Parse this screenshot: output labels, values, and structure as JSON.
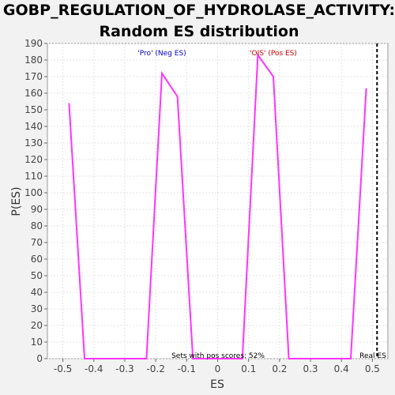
{
  "chart_data": {
    "type": "line",
    "title_line1": "GOBP_REGULATION_OF_HYDROLASE_ACTIVITY:",
    "title_line2": "Random ES distribution",
    "xlabel": "ES",
    "ylabel": "P(ES)",
    "xlim": [
      -0.55,
      0.55
    ],
    "ylim": [
      0,
      190
    ],
    "x_ticks": [
      -0.5,
      -0.4,
      -0.3,
      -0.2,
      -0.1,
      0,
      0.1,
      0.2,
      0.3,
      0.4,
      0.5
    ],
    "x_tick_labels": [
      "-0.5",
      "-0.4",
      "-0.3",
      "-0.2",
      "-0.1",
      "0",
      "0.1",
      "0.2",
      "0.3",
      "0.4",
      "0.5"
    ],
    "y_ticks": [
      0,
      10,
      20,
      30,
      40,
      50,
      60,
      70,
      80,
      90,
      100,
      110,
      120,
      130,
      140,
      150,
      160,
      170,
      180,
      190
    ],
    "grid": true,
    "series": [
      {
        "color": "#ff33ff",
        "x": [
          -0.48,
          -0.43,
          -0.33,
          -0.23,
          -0.18,
          -0.13,
          -0.08,
          -0.03,
          0.03,
          0.08,
          0.13,
          0.18,
          0.23,
          0.33,
          0.43,
          0.48
        ],
        "y": [
          154,
          0,
          0,
          0,
          172,
          158,
          0,
          0,
          0,
          0,
          183,
          170,
          0,
          0,
          0,
          163
        ]
      }
    ],
    "real_es": 0.515,
    "annotations": {
      "neg_label": "'Pro' (Neg ES)",
      "neg_color": "#0000cc",
      "pos_label": "'OIS' (Pos ES)",
      "pos_color": "#cc0000",
      "pos_scores_text": "Sets with pos scores: 52%",
      "real_es_text": "Real ES"
    }
  }
}
